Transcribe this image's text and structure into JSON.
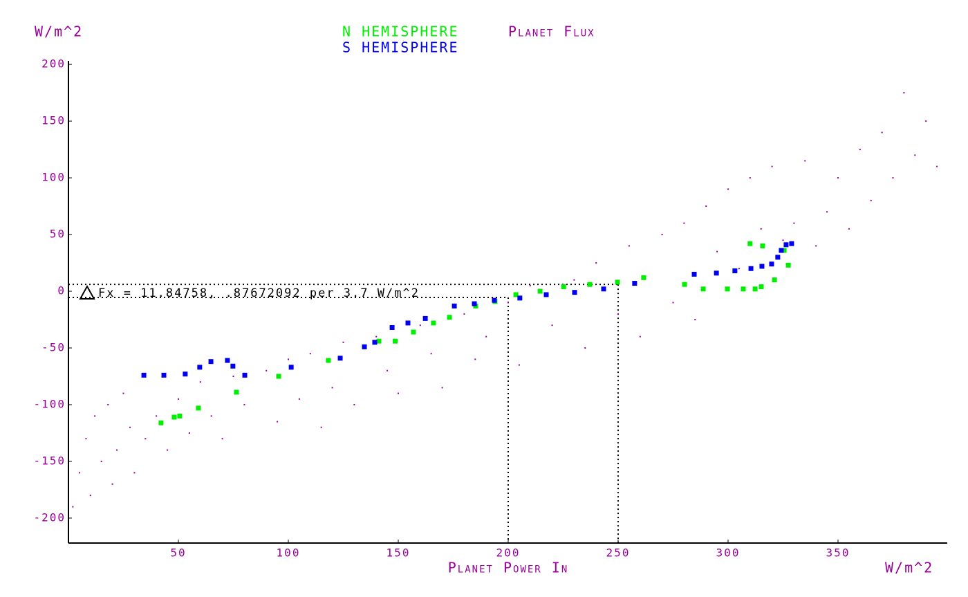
{
  "chart_data": {
    "type": "scatter",
    "title_parts": [
      "N HEMISPHERE",
      "Planet Flux",
      "S HEMISPHERE"
    ],
    "y_unit": "W/m^2",
    "x_label": "Planet Power In",
    "x_unit": "W/m^2",
    "annotation": "Fx = 11.84758, .87672092 per 3.7 W/m^2",
    "xlim": [
      0,
      400
    ],
    "ylim": [
      -222,
      208
    ],
    "xticks": [
      50,
      100,
      150,
      200,
      250,
      300,
      350
    ],
    "yticks": [
      200,
      150,
      100,
      50,
      0,
      -50,
      -100,
      -150,
      -200
    ],
    "guides": [
      {
        "x": 200,
        "y": -5.5
      },
      {
        "x": 250,
        "y": 6
      }
    ],
    "series": [
      {
        "name": "Planet Flux",
        "color": "#990099",
        "x": [
          2,
          5,
          8,
          10,
          12,
          15,
          18,
          20,
          22,
          25,
          28,
          30,
          35,
          40,
          45,
          50,
          55,
          60,
          65,
          70,
          75,
          80,
          90,
          95,
          100,
          105,
          110,
          115,
          120,
          125,
          130,
          140,
          145,
          150,
          160,
          165,
          170,
          180,
          185,
          190,
          200,
          205,
          210,
          220,
          230,
          235,
          240,
          250,
          255,
          260,
          270,
          275,
          280,
          285,
          290,
          295,
          300,
          305,
          310,
          315,
          320,
          325,
          330,
          335,
          340,
          345,
          350,
          355,
          360,
          365,
          370,
          375,
          380,
          385,
          390,
          395
        ],
        "values": [
          -190,
          -160,
          -130,
          -180,
          -110,
          -150,
          -100,
          -170,
          -140,
          -90,
          -120,
          -160,
          -130,
          -110,
          -140,
          -95,
          -125,
          -80,
          -110,
          -130,
          -75,
          -100,
          -70,
          -115,
          -60,
          -95,
          -55,
          -120,
          -85,
          -45,
          -100,
          -40,
          -70,
          -90,
          -30,
          -55,
          -85,
          -20,
          -60,
          -40,
          -10,
          -65,
          5,
          -30,
          10,
          -50,
          25,
          -20,
          40,
          -40,
          50,
          -10,
          60,
          -25,
          75,
          35,
          90,
          20,
          100,
          55,
          110,
          45,
          60,
          115,
          40,
          70,
          100,
          55,
          125,
          80,
          140,
          100,
          175,
          120,
          150,
          110
        ]
      },
      {
        "name": "N HEMISPHERE",
        "color": "#00ee00",
        "x": [
          42.1,
          48.1,
          50.6,
          59.1,
          76.4,
          95.6,
          118.2,
          134.6,
          141.2,
          148.6,
          156.9,
          166,
          173.3,
          185.2,
          194,
          203.5,
          214.5,
          225.2,
          237.1,
          249.7,
          261.6,
          280.2,
          288.7,
          299.7,
          306.9,
          312.3,
          315.1,
          321.1,
          327.4,
          325.5,
          310,
          315.7
        ],
        "values": [
          -116,
          -111,
          -110,
          -103,
          -89,
          -75,
          -61,
          -49,
          -44,
          -44,
          -36,
          -28,
          -23,
          -13,
          -9,
          -3,
          0,
          4,
          6,
          8,
          12,
          6,
          2,
          2,
          2,
          2,
          4,
          10,
          23,
          36,
          42,
          40
        ]
      },
      {
        "name": "S HEMISPHERE",
        "color": "#0000ee",
        "x": [
          34.3,
          43.4,
          53.1,
          59.7,
          64.8,
          72.3,
          74.8,
          80.2,
          101.3,
          123.6,
          134.6,
          139.3,
          147.2,
          154.4,
          162.3,
          175.5,
          184.6,
          193.7,
          205.3,
          217.3,
          230.2,
          243.4,
          257.5,
          284.6,
          294.7,
          303.1,
          310.4,
          315.4,
          319.8,
          322.6,
          324.2,
          326.4,
          328.9
        ],
        "values": [
          -74,
          -74,
          -73,
          -67,
          -62,
          -61,
          -66,
          -74,
          -67,
          -59,
          -49,
          -45,
          -32,
          -28,
          -24,
          -13,
          -11,
          -8,
          -6,
          -3,
          -1,
          2,
          7,
          15,
          16,
          18,
          20,
          22,
          24,
          30,
          36,
          41,
          42
        ]
      }
    ]
  }
}
